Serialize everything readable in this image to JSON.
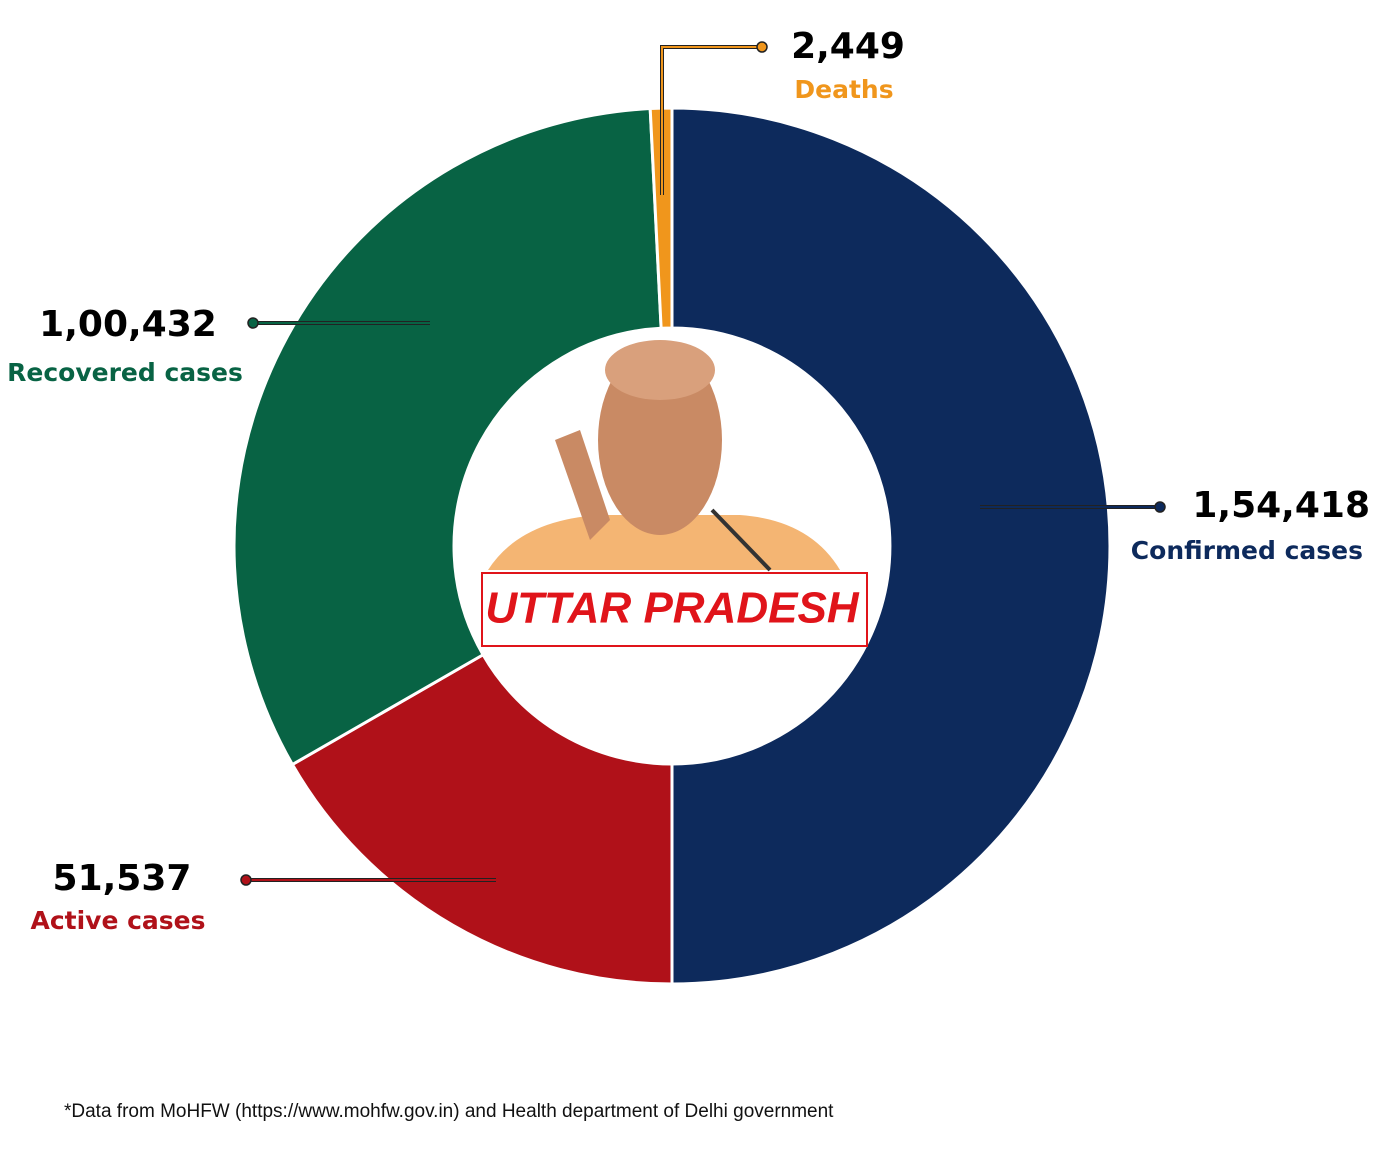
{
  "chart_data": {
    "type": "donut",
    "categories": [
      "Confirmed cases",
      "Active cases",
      "Recovered cases",
      "Deaths"
    ],
    "values": [
      154418,
      51537,
      100432,
      2449
    ],
    "value_labels": [
      "1,54,418",
      "51,537",
      "1,00,432",
      "2,449"
    ],
    "colors": [
      "#0d2a5c",
      "#b01119",
      "#086344",
      "#f0961c"
    ],
    "center_label": "UTTAR PRADESH",
    "source": "*Data from MoHFW (https://www.mohfw.gov.in) and Health department of Delhi government"
  }
}
